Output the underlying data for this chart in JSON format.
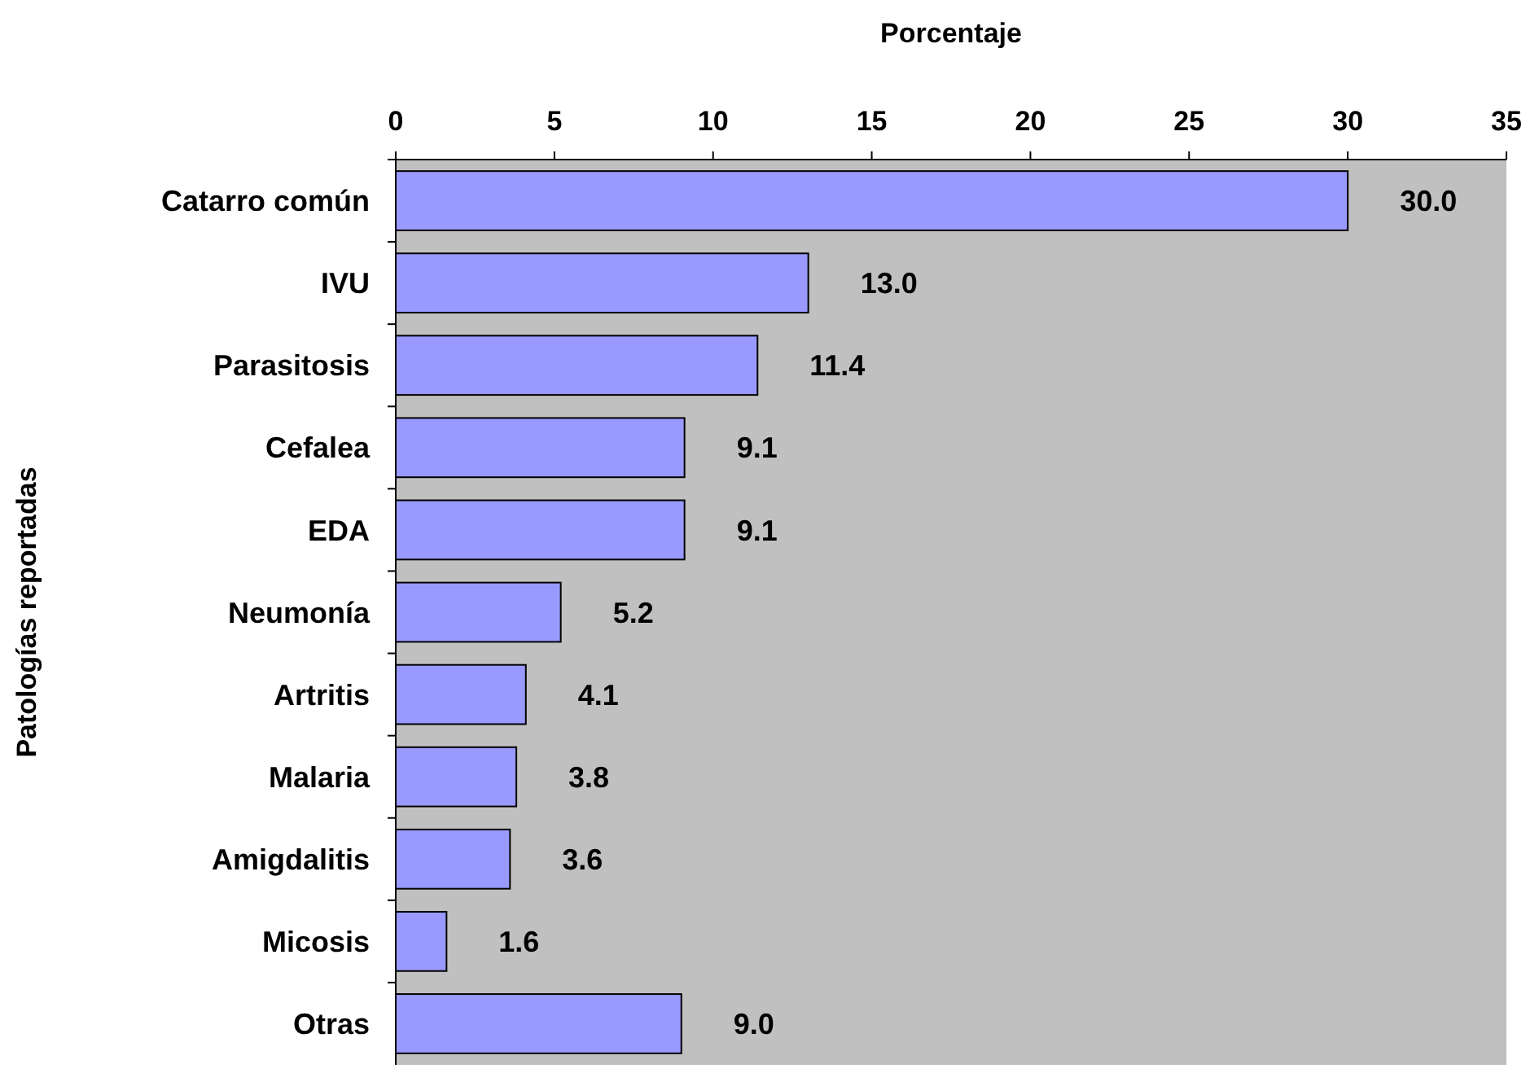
{
  "chart_data": {
    "type": "bar",
    "orientation": "horizontal",
    "xlabel": "Porcentaje",
    "ylabel": "Patologías reportadas",
    "categories": [
      "Catarro común",
      "IVU",
      "Parasitosis",
      "Cefalea",
      "EDA",
      "Neumonía",
      "Artritis",
      "Malaria",
      "Amigdalitis",
      "Micosis",
      "Otras"
    ],
    "values": [
      30.0,
      13.0,
      11.4,
      9.1,
      9.1,
      5.2,
      4.1,
      3.8,
      3.6,
      1.6,
      9.0
    ],
    "value_labels": [
      "30.0",
      "13.0",
      "11.4",
      "9.1",
      "9.1",
      "5.2",
      "4.1",
      "3.8",
      "3.6",
      "1.6",
      "9.0"
    ],
    "color": "#9999ff",
    "xlim": [
      0,
      35
    ],
    "xticks": [
      0,
      5,
      10,
      15,
      20,
      25,
      30,
      35
    ],
    "grid": false
  }
}
